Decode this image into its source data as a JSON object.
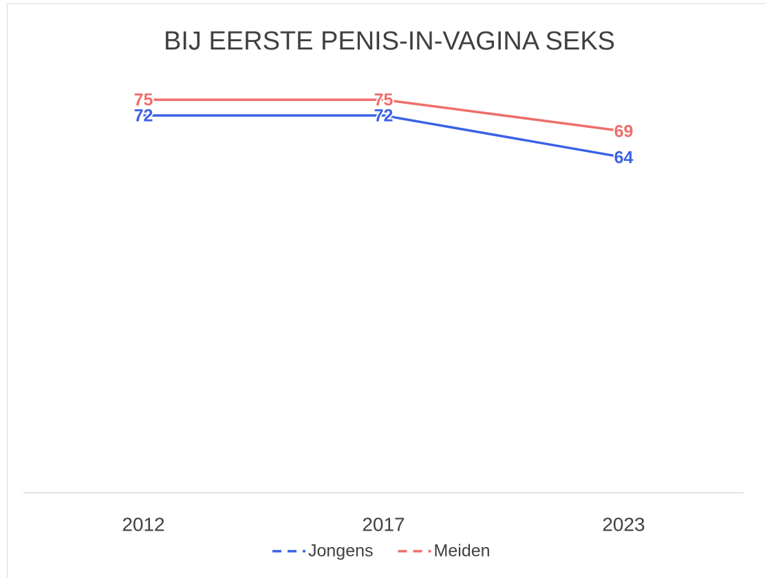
{
  "chart_data": {
    "type": "line",
    "title": "BIJ EERSTE PENIS-IN-VAGINA SEKS",
    "categories": [
      "2012",
      "2017",
      "2023"
    ],
    "series": [
      {
        "name": "Jongens",
        "color": "#3a62e6",
        "values": [
          72,
          72,
          64
        ]
      },
      {
        "name": "Meiden",
        "color": "#ee6e6a",
        "values": [
          75,
          75,
          69
        ]
      }
    ],
    "ylim": [
      0,
      80
    ],
    "legend": "bottom"
  }
}
